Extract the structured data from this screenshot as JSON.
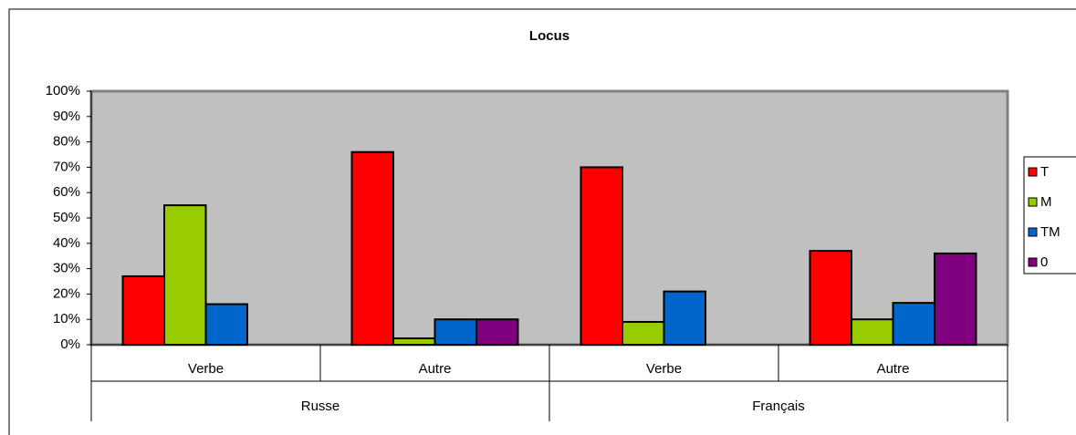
{
  "chart_data": {
    "type": "bar",
    "title": "Locus",
    "groups": [
      {
        "name": "Russe",
        "categories": [
          "Verbe",
          "Autre"
        ]
      },
      {
        "name": "Français",
        "categories": [
          "Verbe",
          "Autre"
        ]
      }
    ],
    "series": [
      {
        "name": "T",
        "color": "#ff0000",
        "values": [
          27,
          76,
          70,
          37
        ]
      },
      {
        "name": "M",
        "color": "#99cc00",
        "values": [
          55,
          2.5,
          9,
          10
        ]
      },
      {
        "name": "TM",
        "color": "#0066cc",
        "values": [
          16,
          10,
          21,
          16.5
        ]
      },
      {
        "name": "0",
        "color": "#800080",
        "values": [
          0,
          10,
          0,
          36
        ]
      }
    ],
    "ylim": [
      0,
      100
    ],
    "yticks": [
      {
        "value": 0,
        "label": "0%"
      },
      {
        "value": 10,
        "label": "10%"
      },
      {
        "value": 20,
        "label": "20%"
      },
      {
        "value": 30,
        "label": "30%"
      },
      {
        "value": 40,
        "label": "40%"
      },
      {
        "value": 50,
        "label": "50%"
      },
      {
        "value": 60,
        "label": "60%"
      },
      {
        "value": 70,
        "label": "70%"
      },
      {
        "value": 80,
        "label": "80%"
      },
      {
        "value": 90,
        "label": "90%"
      },
      {
        "value": 100,
        "label": "100%"
      }
    ],
    "plot_background": "#c0c0c0",
    "legend": "right"
  }
}
